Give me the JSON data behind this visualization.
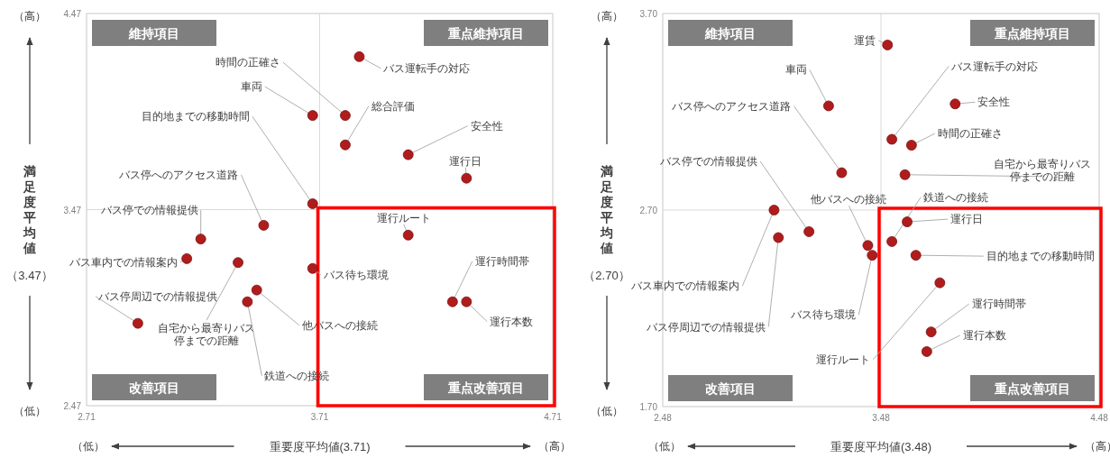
{
  "chart_data": [
    {
      "type": "scatter",
      "xlabel": "重要度平均値(3.71)",
      "ylabel": "満足度平均値",
      "color": "#b01c1c",
      "marker": "circle",
      "grid": true,
      "xlim": [
        2.71,
        4.71
      ],
      "ylim": [
        2.47,
        4.47
      ],
      "xticks": [
        2.71,
        3.71,
        4.71
      ],
      "yticks": [
        2.47,
        3.47,
        4.47
      ],
      "x": [
        3.88,
        3.68,
        3.82,
        3.82,
        4.09,
        4.34,
        3.68,
        3.47,
        3.2,
        3.14,
        3.36,
        3.68,
        4.09,
        3.44,
        3.4,
        4.28,
        4.34,
        2.93
      ],
      "values": [
        4.25,
        3.95,
        3.95,
        3.8,
        3.75,
        3.63,
        3.5,
        3.39,
        3.32,
        3.22,
        3.2,
        3.17,
        3.34,
        3.06,
        3.0,
        3.0,
        3.0,
        2.89
      ],
      "annotations": [
        {
          "text": "バス運転手の対応",
          "x": 3.88,
          "y": 4.25
        },
        {
          "text": "車両",
          "x": 3.68,
          "y": 3.95
        },
        {
          "text": "時間の正確さ",
          "x": 3.82,
          "y": 3.95
        },
        {
          "text": "総合評価",
          "x": 3.82,
          "y": 3.8
        },
        {
          "text": "安全性",
          "x": 4.09,
          "y": 3.75
        },
        {
          "text": "運行日",
          "x": 4.34,
          "y": 3.63
        },
        {
          "text": "目的地までの移動時間",
          "x": 3.68,
          "y": 3.5
        },
        {
          "text": "バス停へのアクセス道路",
          "x": 3.47,
          "y": 3.39
        },
        {
          "text": "バス停での情報提供",
          "x": 3.2,
          "y": 3.32
        },
        {
          "text": "バス車内での情報案内",
          "x": 3.14,
          "y": 3.22
        },
        {
          "text": "自宅から最寄りバス停までの距離",
          "x": 3.36,
          "y": 3.2
        },
        {
          "text": "バス待ち環境",
          "x": 3.68,
          "y": 3.17
        },
        {
          "text": "運行ルート",
          "x": 4.09,
          "y": 3.34
        },
        {
          "text": "他バスへの接続",
          "x": 3.44,
          "y": 3.06
        },
        {
          "text": "鉄道への接続",
          "x": 3.4,
          "y": 3.0
        },
        {
          "text": "運行時間帯",
          "x": 4.28,
          "y": 3.0
        },
        {
          "text": "運行本数",
          "x": 4.34,
          "y": 3.0
        },
        {
          "text": "バス停周辺での情報提供",
          "x": 2.93,
          "y": 2.89
        },
        "維持項目",
        "重点維持項目",
        "改善項目",
        "重点改善項目",
        "（3.47）",
        "（高）",
        "（低）",
        "（低）",
        "（高）"
      ]
    },
    {
      "type": "scatter",
      "xlabel": "重要度平均値(3.48)",
      "ylabel": "満足度平均値",
      "color": "#b01c1c",
      "marker": "circle",
      "grid": true,
      "xlim": [
        2.48,
        4.48
      ],
      "ylim": [
        1.7,
        3.7
      ],
      "xticks": [
        2.48,
        3.48,
        4.48
      ],
      "yticks": [
        {
          "value": 1.7,
          "label": "1.70"
        },
        {
          "value": 2.7,
          "label": "2.70"
        },
        {
          "value": 3.7,
          "label": "3.70"
        }
      ],
      "x": [
        3.51,
        3.24,
        3.53,
        3.82,
        3.62,
        3.3,
        3.59,
        3.15,
        3.42,
        3.53,
        2.99,
        3.01,
        3.44,
        3.6,
        3.64,
        3.75,
        3.71,
        3.69
      ],
      "values": [
        3.54,
        3.23,
        3.06,
        3.24,
        3.03,
        2.89,
        2.88,
        2.59,
        2.52,
        2.54,
        2.7,
        2.56,
        2.47,
        2.64,
        2.47,
        2.33,
        2.08,
        1.98
      ],
      "annotations": [
        {
          "text": "運賃",
          "x": 3.51,
          "y": 3.54
        },
        {
          "text": "車両",
          "x": 3.24,
          "y": 3.23
        },
        {
          "text": "バス運転手の対応",
          "x": 3.53,
          "y": 3.06
        },
        {
          "text": "安全性",
          "x": 3.82,
          "y": 3.24
        },
        {
          "text": "時間の正確さ",
          "x": 3.62,
          "y": 3.03
        },
        {
          "text": "バス停へのアクセス道路",
          "x": 3.3,
          "y": 2.89
        },
        {
          "text": "自宅から最寄りバス停までの距離",
          "x": 3.59,
          "y": 2.88
        },
        {
          "text": "バス停での情報提供",
          "x": 3.15,
          "y": 2.59
        },
        {
          "text": "他バスへの接続",
          "x": 3.42,
          "y": 2.52
        },
        {
          "text": "鉄道への接続",
          "x": 3.53,
          "y": 2.54
        },
        {
          "text": "バス車内での情報案内",
          "x": 2.99,
          "y": 2.7
        },
        {
          "text": "バス停周辺での情報提供",
          "x": 3.01,
          "y": 2.56
        },
        {
          "text": "バス待ち環境",
          "x": 3.44,
          "y": 2.47
        },
        {
          "text": "運行日",
          "x": 3.6,
          "y": 2.64
        },
        {
          "text": "目的地までの移動時間",
          "x": 3.64,
          "y": 2.47
        },
        {
          "text": "運行ルート",
          "x": 3.75,
          "y": 2.33
        },
        {
          "text": "運行時間帯",
          "x": 3.71,
          "y": 2.08
        },
        {
          "text": "運行本数",
          "x": 3.69,
          "y": 1.98
        },
        "維持項目",
        "重点維持項目",
        "改善項目",
        "重点改善項目",
        "（2.70）",
        "（高）",
        "（低）",
        "（低）",
        "（高）"
      ]
    }
  ]
}
